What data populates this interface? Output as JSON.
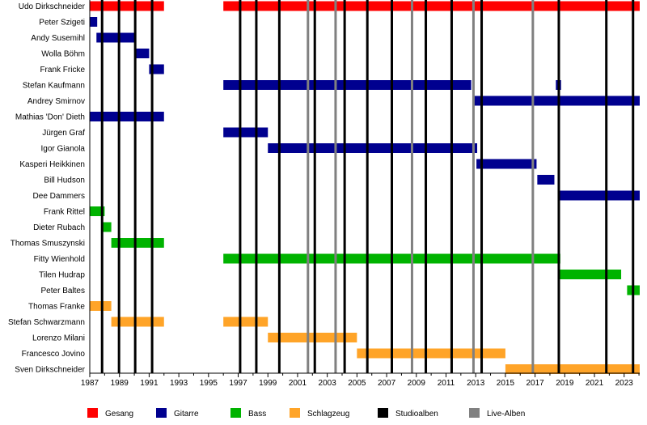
{
  "chart_data": {
    "type": "timeline",
    "title": "",
    "xlim": [
      1987,
      2024.05
    ],
    "x_ticks": [
      1987,
      1989,
      1991,
      1993,
      1995,
      1997,
      1999,
      2001,
      2003,
      2005,
      2007,
      2009,
      2011,
      2013,
      2015,
      2017,
      2019,
      2021,
      2023
    ],
    "colors": {
      "Gesang": "#ff0000",
      "Gitarre": "#00008f",
      "Bass": "#00b300",
      "Schlagzeug": "#ffa428",
      "Studioalben": "#000000",
      "Live-Alben": "#808080"
    },
    "legend": [
      "Gesang",
      "Gitarre",
      "Bass",
      "Schlagzeug",
      "Studioalben",
      "Live-Alben"
    ],
    "legend_placement": "bottom",
    "members": [
      {
        "name": "Udo Dirkschneider",
        "role": "Gesang",
        "periods": [
          [
            1987,
            1992
          ],
          [
            1996,
            2024.05
          ]
        ]
      },
      {
        "name": "Peter Szigeti",
        "role": "Gitarre",
        "periods": [
          [
            1987,
            1987.5
          ]
        ]
      },
      {
        "name": "Andy Susemihl",
        "role": "Gitarre",
        "periods": [
          [
            1987.45,
            1990
          ]
        ]
      },
      {
        "name": "Wolla Böhm",
        "role": "Gitarre",
        "periods": [
          [
            1990,
            1991
          ]
        ]
      },
      {
        "name": "Frank Fricke",
        "role": "Gitarre",
        "periods": [
          [
            1991,
            1992
          ]
        ]
      },
      {
        "name": "Stefan Kaufmann",
        "role": "Gitarre",
        "periods": [
          [
            1996,
            2012.7
          ],
          [
            2018.4,
            2018.75
          ]
        ]
      },
      {
        "name": "Andrey Smirnov",
        "role": "Gitarre",
        "periods": [
          [
            2012.9,
            2024.05
          ]
        ]
      },
      {
        "name": "Mathias 'Don' Dieth",
        "role": "Gitarre",
        "periods": [
          [
            1987,
            1992
          ]
        ]
      },
      {
        "name": "Jürgen Graf",
        "role": "Gitarre",
        "periods": [
          [
            1996,
            1999
          ]
        ]
      },
      {
        "name": "Igor Gianola",
        "role": "Gitarre",
        "periods": [
          [
            1999,
            2013.1
          ]
        ]
      },
      {
        "name": "Kasperi Heikkinen",
        "role": "Gitarre",
        "periods": [
          [
            2013.05,
            2017.1
          ]
        ]
      },
      {
        "name": "Bill Hudson",
        "role": "Gitarre",
        "periods": [
          [
            2017.15,
            2018.3
          ]
        ]
      },
      {
        "name": "Dee Dammers",
        "role": "Gitarre",
        "periods": [
          [
            2018.6,
            2024.05
          ]
        ]
      },
      {
        "name": "Frank Rittel",
        "role": "Bass",
        "periods": [
          [
            1987,
            1988
          ]
        ]
      },
      {
        "name": "Dieter Rubach",
        "role": "Bass",
        "periods": [
          [
            1987.9,
            1988.45
          ]
        ]
      },
      {
        "name": "Thomas Smuszynski",
        "role": "Bass",
        "periods": [
          [
            1988.45,
            1992
          ]
        ]
      },
      {
        "name": "Fitty Wienhold",
        "role": "Bass",
        "periods": [
          [
            1996,
            2018.7
          ]
        ]
      },
      {
        "name": "Tilen Hudrap",
        "role": "Bass",
        "periods": [
          [
            2018.65,
            2022.8
          ]
        ]
      },
      {
        "name": "Peter Baltes",
        "role": "Bass",
        "periods": [
          [
            2023.2,
            2024.05
          ]
        ]
      },
      {
        "name": "Thomas Franke",
        "role": "Schlagzeug",
        "periods": [
          [
            1987,
            1988.45
          ]
        ]
      },
      {
        "name": "Stefan Schwarzmann",
        "role": "Schlagzeug",
        "periods": [
          [
            1988.45,
            1992
          ],
          [
            1996,
            1999
          ]
        ]
      },
      {
        "name": "Lorenzo Milani",
        "role": "Schlagzeug",
        "periods": [
          [
            1999,
            2005
          ]
        ]
      },
      {
        "name": "Francesco Jovino",
        "role": "Schlagzeug",
        "periods": [
          [
            2005,
            2015
          ]
        ]
      },
      {
        "name": "Sven Dirkschneider",
        "role": "Schlagzeug",
        "periods": [
          [
            2015,
            2024.05
          ]
        ]
      }
    ],
    "studio_albums": [
      1987.83,
      1988.97,
      1990.06,
      1991.2,
      1997.13,
      1998.22,
      1999.77,
      2002.16,
      2004.17,
      2005.7,
      2007.35,
      2009.64,
      2011.38,
      2013.4,
      2018.6,
      2021.8,
      2023.6
    ],
    "live_albums": [
      2001.7,
      2003.56,
      2008.71,
      2012.85,
      2016.85
    ]
  }
}
